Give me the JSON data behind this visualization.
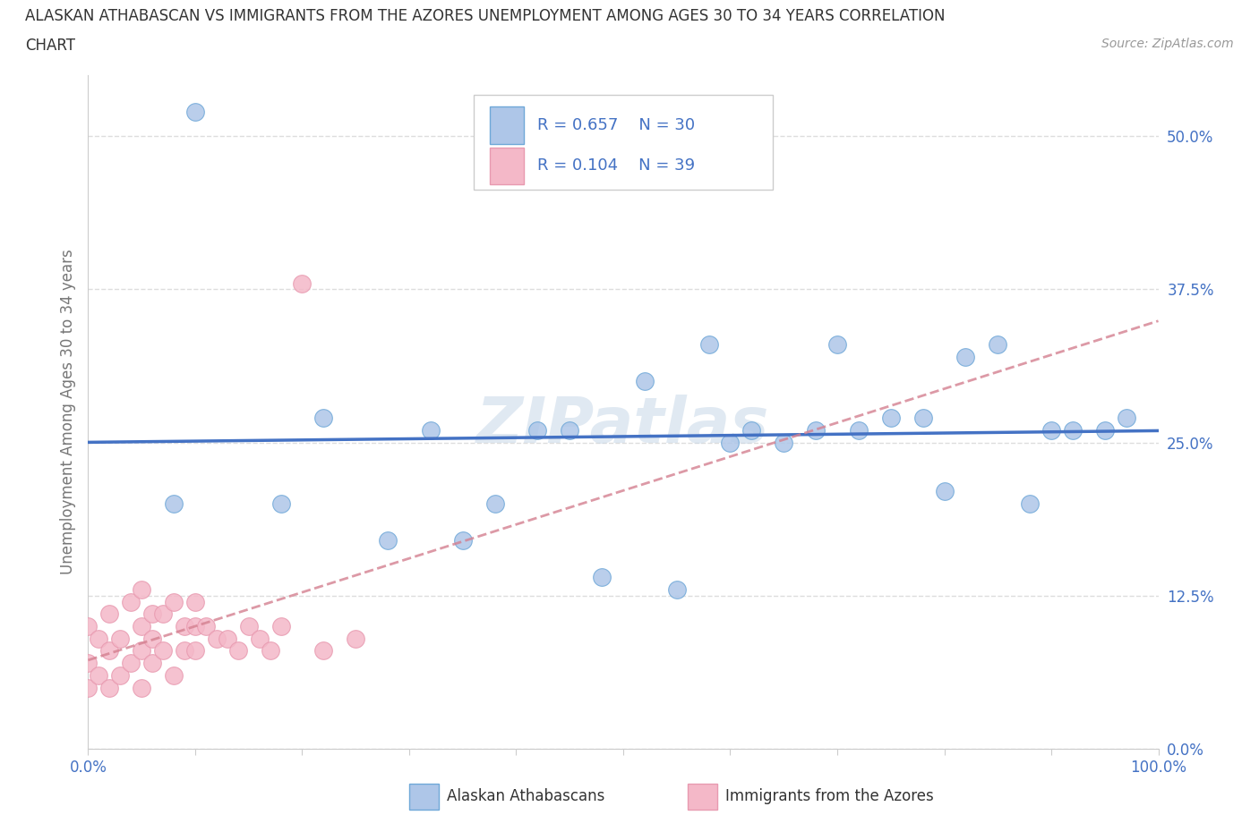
{
  "title_line1": "ALASKAN ATHABASCAN VS IMMIGRANTS FROM THE AZORES UNEMPLOYMENT AMONG AGES 30 TO 34 YEARS CORRELATION",
  "title_line2": "CHART",
  "source_text": "Source: ZipAtlas.com",
  "ylabel": "Unemployment Among Ages 30 to 34 years",
  "R_blue": 0.657,
  "N_blue": 30,
  "R_pink": 0.104,
  "N_pink": 39,
  "blue_color": "#aec6e8",
  "blue_edge_color": "#6fa8d8",
  "blue_line_color": "#4472c4",
  "pink_color": "#f4b8c8",
  "pink_edge_color": "#e89ab0",
  "pink_line_color": "#d48090",
  "legend_label_blue": "Alaskan Athabascans",
  "legend_label_pink": "Immigrants from the Azores",
  "watermark": "ZIPatlas",
  "blue_dots_x": [
    8,
    10,
    18,
    22,
    28,
    32,
    35,
    38,
    42,
    45,
    48,
    52,
    55,
    58,
    60,
    62,
    65,
    68,
    70,
    72,
    75,
    78,
    80,
    82,
    85,
    88,
    90,
    92,
    95,
    97
  ],
  "blue_dots_y": [
    20,
    52,
    20,
    27,
    17,
    26,
    17,
    20,
    26,
    26,
    14,
    30,
    13,
    33,
    25,
    26,
    25,
    26,
    33,
    26,
    27,
    27,
    21,
    32,
    33,
    20,
    26,
    26,
    26,
    27
  ],
  "pink_dots_x": [
    0,
    0,
    0,
    1,
    1,
    2,
    2,
    2,
    3,
    3,
    4,
    4,
    5,
    5,
    5,
    5,
    6,
    6,
    6,
    7,
    7,
    8,
    8,
    9,
    9,
    10,
    10,
    10,
    11,
    12,
    13,
    14,
    15,
    16,
    17,
    18,
    20,
    22,
    25
  ],
  "pink_dots_y": [
    5,
    7,
    10,
    6,
    9,
    5,
    8,
    11,
    6,
    9,
    7,
    12,
    5,
    8,
    10,
    13,
    7,
    9,
    11,
    8,
    11,
    6,
    12,
    8,
    10,
    8,
    10,
    12,
    10,
    9,
    9,
    8,
    10,
    9,
    8,
    10,
    38,
    8,
    9
  ],
  "xlim": [
    0,
    100
  ],
  "ylim": [
    0,
    55
  ],
  "ytick_vals": [
    0,
    12.5,
    25,
    37.5,
    50
  ],
  "ytick_labels": [
    "0.0%",
    "12.5%",
    "25.0%",
    "37.5%",
    "50.0%"
  ],
  "xtick_vals": [
    0,
    10,
    20,
    30,
    40,
    50,
    60,
    70,
    80,
    90,
    100
  ],
  "xtick_labels_show": [
    "0.0%",
    "",
    "",
    "",
    "",
    "",
    "",
    "",
    "",
    "",
    "100.0%"
  ],
  "grid_color": "#dddddd",
  "bg_color": "#ffffff",
  "title_color": "#333333",
  "tick_color": "#4472c4",
  "axis_label_color": "#777777",
  "source_color": "#999999"
}
